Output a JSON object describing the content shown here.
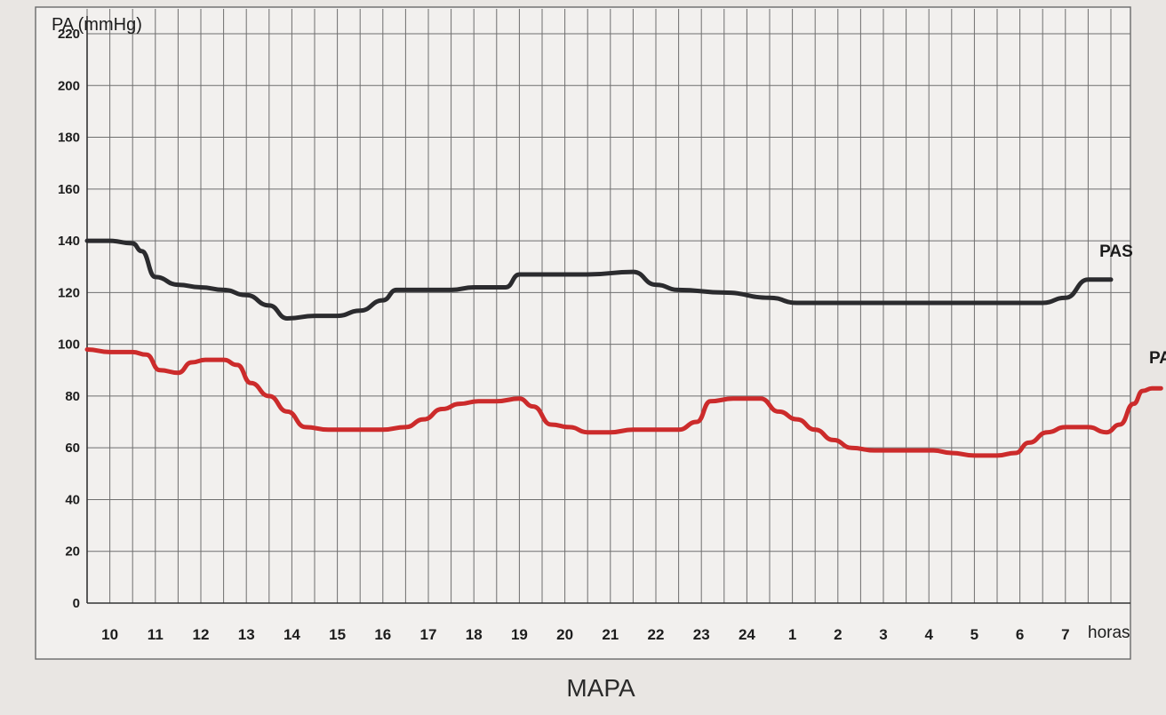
{
  "chart_data": {
    "type": "line",
    "ylabel": "PA (mmHg)",
    "xlabel_unit": "horas",
    "caption": "MAPA",
    "x_categories": [
      "10",
      "11",
      "12",
      "13",
      "14",
      "15",
      "16",
      "17",
      "18",
      "19",
      "20",
      "21",
      "22",
      "23",
      "24",
      "1",
      "2",
      "3",
      "4",
      "5",
      "6",
      "7"
    ],
    "ylim": [
      0,
      220
    ],
    "yticks": [
      0,
      20,
      40,
      60,
      80,
      100,
      120,
      140,
      160,
      180,
      200,
      220
    ],
    "grid": true,
    "series": [
      {
        "name": "PAS",
        "color": "#2b2b2e",
        "points": [
          [
            0,
            140
          ],
          [
            0.5,
            140
          ],
          [
            1.0,
            139
          ],
          [
            1.2,
            136
          ],
          [
            1.5,
            126
          ],
          [
            2.0,
            123
          ],
          [
            2.5,
            122
          ],
          [
            3.0,
            121
          ],
          [
            3.5,
            119
          ],
          [
            4.0,
            115
          ],
          [
            4.4,
            110
          ],
          [
            5.0,
            111
          ],
          [
            5.5,
            111
          ],
          [
            6.0,
            113
          ],
          [
            6.5,
            117
          ],
          [
            6.8,
            121
          ],
          [
            7.5,
            121
          ],
          [
            8.0,
            121
          ],
          [
            8.5,
            122
          ],
          [
            9.2,
            122
          ],
          [
            9.5,
            127
          ],
          [
            10.0,
            127
          ],
          [
            11.0,
            127
          ],
          [
            12.0,
            128
          ],
          [
            12.5,
            123
          ],
          [
            13.0,
            121
          ],
          [
            14.0,
            120
          ],
          [
            15.0,
            118
          ],
          [
            15.6,
            116
          ],
          [
            16.0,
            116
          ],
          [
            17.0,
            116
          ],
          [
            18.0,
            116
          ],
          [
            19.0,
            116
          ],
          [
            20.0,
            116
          ],
          [
            21.0,
            116
          ],
          [
            21.5,
            118
          ],
          [
            22.0,
            125
          ],
          [
            22.5,
            125
          ]
        ]
      },
      {
        "name": "PAD",
        "color": "#cc2b2b",
        "points": [
          [
            0,
            98
          ],
          [
            0.5,
            97
          ],
          [
            1.0,
            97
          ],
          [
            1.3,
            96
          ],
          [
            1.6,
            90
          ],
          [
            2.0,
            89
          ],
          [
            2.3,
            93
          ],
          [
            2.6,
            94
          ],
          [
            3.0,
            94
          ],
          [
            3.3,
            92
          ],
          [
            3.6,
            85
          ],
          [
            4.0,
            80
          ],
          [
            4.4,
            74
          ],
          [
            4.8,
            68
          ],
          [
            5.3,
            67
          ],
          [
            6.0,
            67
          ],
          [
            6.5,
            67
          ],
          [
            7.0,
            68
          ],
          [
            7.4,
            71
          ],
          [
            7.8,
            75
          ],
          [
            8.2,
            77
          ],
          [
            8.6,
            78
          ],
          [
            9.0,
            78
          ],
          [
            9.5,
            79
          ],
          [
            9.8,
            76
          ],
          [
            10.2,
            69
          ],
          [
            10.6,
            68
          ],
          [
            11.0,
            66
          ],
          [
            11.5,
            66
          ],
          [
            12.0,
            67
          ],
          [
            12.5,
            67
          ],
          [
            13.0,
            67
          ],
          [
            13.4,
            70
          ],
          [
            13.7,
            78
          ],
          [
            14.2,
            79
          ],
          [
            14.8,
            79
          ],
          [
            15.2,
            74
          ],
          [
            15.6,
            71
          ],
          [
            16.0,
            67
          ],
          [
            16.4,
            63
          ],
          [
            16.8,
            60
          ],
          [
            17.3,
            59
          ],
          [
            18.0,
            59
          ],
          [
            18.6,
            59
          ],
          [
            19.0,
            58
          ],
          [
            19.5,
            57
          ],
          [
            20.0,
            57
          ],
          [
            20.4,
            58
          ],
          [
            20.7,
            62
          ],
          [
            21.1,
            66
          ],
          [
            21.5,
            68
          ],
          [
            22.0,
            68
          ],
          [
            22.4,
            66
          ],
          [
            22.7,
            69
          ],
          [
            23.0,
            77
          ],
          [
            23.2,
            82
          ],
          [
            23.4,
            83
          ],
          [
            23.6,
            83
          ]
        ]
      }
    ]
  }
}
